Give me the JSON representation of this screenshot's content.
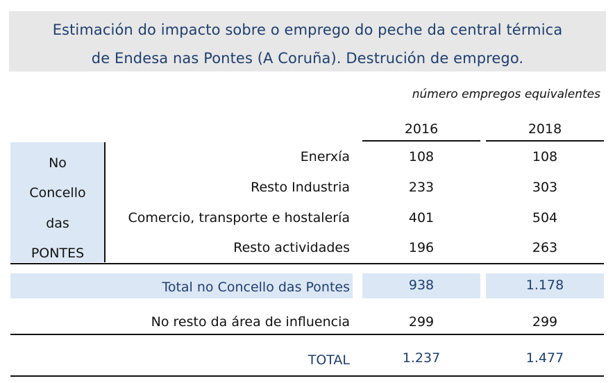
{
  "title": {
    "line1": "Estimación do impacto sobre o emprego do peche da central térmica",
    "line2": "de Endesa nas Pontes (A Coruña). Destrución de emprego."
  },
  "unit_note": "número empregos equivalentes",
  "years": [
    "2016",
    "2018"
  ],
  "group_label": [
    "No",
    "Concello",
    "das",
    "PONTES"
  ],
  "rows": [
    {
      "label": "Enerxía",
      "v2016": "108",
      "v2018": "108"
    },
    {
      "label": "Resto Industria",
      "v2016": "233",
      "v2018": "303"
    },
    {
      "label": "Comercio, transporte e hostalería",
      "v2016": "401",
      "v2018": "504"
    },
    {
      "label": "Resto actividades",
      "v2016": "196",
      "v2018": "263"
    }
  ],
  "total_concello": {
    "label": "Total no Concello das Pontes",
    "v2016": "938",
    "v2018": "1.178"
  },
  "resto_area": {
    "label": "No resto da área de influencia",
    "v2016": "299",
    "v2018": "299"
  },
  "total": {
    "label": "TOTAL",
    "v2016": "1.237",
    "v2018": "1.477"
  },
  "colors": {
    "title_bg": "#e7e7e7",
    "accent_blue": "#1f3f6f",
    "light_blue": "#dbe7f4"
  }
}
